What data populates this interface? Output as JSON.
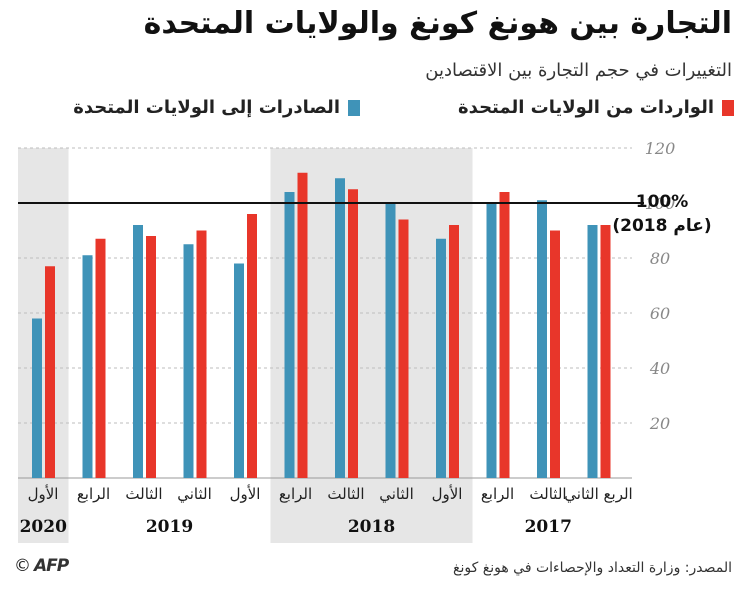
{
  "title": "التجارة بين هونغ كونغ والولايات المتحدة",
  "subtitle": "التغييرات في حجم التجارة بين الاقتصادين",
  "legend": {
    "imports": "الواردات من الولايات المتحدة",
    "exports": "الصادرات إلى الولايات المتحدة"
  },
  "reference": {
    "value_label": "100%",
    "year_label": "(عام 2018)"
  },
  "source": "المصدر: وزارة التعداد والإحصاءات في هونغ كونغ",
  "logo": {
    "text": "AFP",
    "copyright": "©"
  },
  "colors": {
    "imports": "#e8362a",
    "exports": "#3f93b8",
    "shade": "#e6e6e6",
    "grid": "#bdbdbd"
  },
  "chart_data": {
    "type": "bar",
    "ylim": [
      0,
      120
    ],
    "yticks": [
      20,
      40,
      60,
      80,
      100,
      120
    ],
    "reference_line": 100,
    "grid": true,
    "categories": [
      "الأول",
      "الرابع",
      "الثالث",
      "الثاني",
      "الأول",
      "الرابع",
      "الثالث",
      "الثاني",
      "الأول",
      "الرابع",
      "الثالث",
      "الربع الثاني"
    ],
    "years": [
      {
        "label": "2020",
        "count": 1,
        "shaded": true
      },
      {
        "label": "2019",
        "count": 4,
        "shaded": false
      },
      {
        "label": "2018",
        "count": 4,
        "shaded": true
      },
      {
        "label": "2017",
        "count": 3,
        "shaded": false
      }
    ],
    "series": [
      {
        "name": "الصادرات إلى الولايات المتحدة",
        "key": "exports",
        "values": [
          58,
          81,
          92,
          85,
          78,
          104,
          109,
          100,
          87,
          100,
          101,
          92
        ]
      },
      {
        "name": "الواردات من الولايات المتحدة",
        "key": "imports",
        "values": [
          77,
          87,
          88,
          90,
          96,
          111,
          105,
          94,
          92,
          104,
          90,
          92
        ]
      }
    ]
  }
}
